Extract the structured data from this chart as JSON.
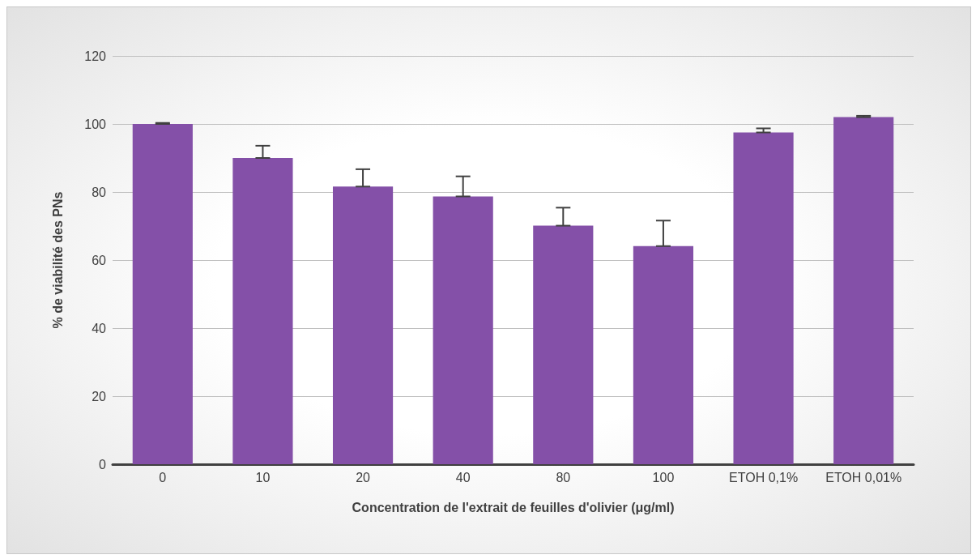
{
  "chart_data": {
    "type": "bar",
    "xlabel": "Concentration de l'extrait de feuilles d'olivier (μg/ml)",
    "ylabel": "% de viabilité des PNs",
    "categories": [
      "0",
      "10",
      "20",
      "40",
      "80",
      "100",
      "ETOH 0,1%",
      "ETOH 0,01%"
    ],
    "values": [
      100,
      90,
      81.6,
      78.7,
      70.1,
      64.1,
      97.5,
      102
    ],
    "errors": [
      [
        100,
        100.3
      ],
      [
        90,
        93.6
      ],
      [
        81.6,
        86.7
      ],
      [
        78.7,
        84.6
      ],
      [
        70.1,
        75.4
      ],
      [
        64.1,
        71.6
      ],
      [
        97.5,
        98.7
      ],
      [
        102,
        102.4
      ]
    ],
    "color": "#8450a8",
    "ylim": [
      0,
      120
    ],
    "yticks": [
      0,
      20,
      40,
      60,
      80,
      100,
      120
    ],
    "grid": "y"
  }
}
